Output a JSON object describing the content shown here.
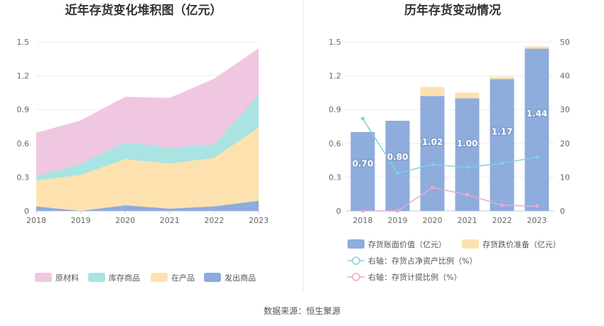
{
  "footer": {
    "source_label": "数据来源：恒生聚源"
  },
  "chart_data": [
    {
      "type": "area",
      "title": "近年存货变化堆积图（亿元）",
      "categories": [
        "2018",
        "2019",
        "2020",
        "2021",
        "2022",
        "2023"
      ],
      "ylim": [
        0,
        1.5
      ],
      "yticks": [
        "0",
        "0.3",
        "0.6",
        "0.9",
        "1.2",
        "1.5"
      ],
      "grid": true,
      "legend_position": "bottom",
      "series": [
        {
          "name": "发出商品",
          "color": "#8eacdc",
          "values": [
            0.04,
            0.0,
            0.05,
            0.02,
            0.04,
            0.09
          ]
        },
        {
          "name": "在产品",
          "color": "#fde2b0",
          "values": [
            0.23,
            0.32,
            0.41,
            0.4,
            0.43,
            0.65
          ]
        },
        {
          "name": "库存商品",
          "color": "#a9e4e2",
          "values": [
            0.04,
            0.1,
            0.15,
            0.14,
            0.12,
            0.29
          ]
        },
        {
          "name": "原材料",
          "color": "#f0c7e1",
          "values": [
            0.38,
            0.38,
            0.4,
            0.44,
            0.58,
            0.41
          ]
        }
      ],
      "legend_order": [
        "原材料",
        "库存商品",
        "在产品",
        "发出商品"
      ]
    },
    {
      "type": "bar",
      "title": "历年存货变动情况",
      "categories": [
        "2018",
        "2019",
        "2020",
        "2021",
        "2022",
        "2023"
      ],
      "ylim": [
        0,
        1.5
      ],
      "yticks": [
        "0",
        "0.3",
        "0.6",
        "0.9",
        "1.2",
        "1.5"
      ],
      "y2lim": [
        0,
        50
      ],
      "y2ticks": [
        "0",
        "10",
        "20",
        "30",
        "40",
        "50"
      ],
      "grid": true,
      "legend_position": "bottom",
      "bars": [
        {
          "name": "存货账面价值（亿元）",
          "color": "#8eacdc",
          "values": [
            0.7,
            0.8,
            1.02,
            1.0,
            1.17,
            1.44
          ],
          "labels": [
            "0.70",
            "0.80",
            "1.02",
            "1.00",
            "1.17",
            "1.44"
          ]
        },
        {
          "name": "存货跌价准备（亿元）",
          "color": "#fde2b0",
          "values": [
            0.0,
            0.0,
            0.08,
            0.05,
            0.02,
            0.02
          ]
        }
      ],
      "lines": [
        {
          "name": "右轴：存货占净资产比例（%）",
          "color": "#7dd3d8",
          "values": [
            27.3,
            11.2,
            13.7,
            12.9,
            14.1,
            15.9
          ]
        },
        {
          "name": "右轴：存货计提比例（%）",
          "color": "#eba9cf",
          "values": [
            0.0,
            0.0,
            6.9,
            4.8,
            1.7,
            1.4
          ]
        }
      ]
    }
  ]
}
